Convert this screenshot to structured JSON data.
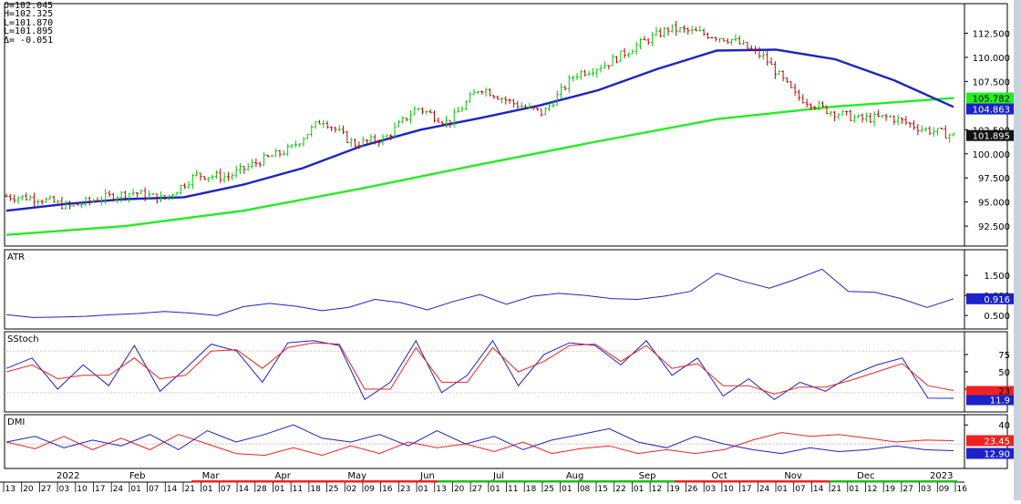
{
  "ohlc_readout": {
    "open": "O=102.045",
    "high": "H=102.325",
    "low_1": "L=101.870",
    "low_2": "L=101.895",
    "change": "Δ= -0.051"
  },
  "chart_data": [
    {
      "panel": "price",
      "type": "line",
      "subtype": "ohlc-bars",
      "x_range": [
        "2021-12-13",
        "2023-01-16"
      ],
      "ylim": [
        91.0,
        115.0
      ],
      "yticks": [
        "112.500",
        "110.000",
        "107.500",
        "102.500",
        "100.000",
        "97.500",
        "95.000",
        "92.500"
      ],
      "last_price": "101.895",
      "series": [
        {
          "kind": "ohlc",
          "color": "#00cc00",
          "down_color": "#cc0000",
          "x": [
            "2021-12-13",
            "2021-12-27",
            "2022-01-10",
            "2022-01-24",
            "2022-02-07",
            "2022-02-21",
            "2022-03-07",
            "2022-03-21",
            "2022-04-04",
            "2022-04-18",
            "2022-05-02",
            "2022-05-16",
            "2022-05-30",
            "2022-06-13",
            "2022-06-27",
            "2022-07-11",
            "2022-07-25",
            "2022-08-08",
            "2022-08-22",
            "2022-09-05",
            "2022-09-19",
            "2022-09-28",
            "2022-10-10",
            "2022-10-24",
            "2022-11-04",
            "2022-11-14",
            "2022-11-28",
            "2022-12-12",
            "2022-12-27",
            "2023-01-09",
            "2023-01-16"
          ],
          "values": [
            95.6,
            95.4,
            94.5,
            95.4,
            96.0,
            95.3,
            97.8,
            97.6,
            99.2,
            100.5,
            103.6,
            101.0,
            101.6,
            104.8,
            103.2,
            106.9,
            105.3,
            104.2,
            108.2,
            109.3,
            111.3,
            113.0,
            112.5,
            111.8,
            110.0,
            106.0,
            104.5,
            103.6,
            103.8,
            102.6,
            101.895
          ]
        },
        {
          "name": "",
          "kind": "moving-average",
          "color": "#1c22c8",
          "x": [
            "2021-12-13",
            "2022-01-17",
            "2022-02-14",
            "2022-03-07",
            "2022-04-04",
            "2022-05-02",
            "2022-05-30",
            "2022-06-27",
            "2022-07-25",
            "2022-08-22",
            "2022-09-19",
            "2022-10-10",
            "2022-10-31",
            "2022-11-14",
            "2022-12-05",
            "2022-12-27",
            "2023-01-16"
          ],
          "values": [
            94.1,
            94.8,
            95.3,
            95.5,
            96.8,
            98.5,
            100.8,
            102.5,
            103.7,
            105.0,
            106.6,
            108.8,
            110.7,
            110.8,
            109.8,
            107.6,
            104.863
          ]
        },
        {
          "name": "",
          "kind": "moving-average",
          "color": "#22ee22",
          "x": [
            "2021-12-13",
            "2022-02-14",
            "2022-04-18",
            "2022-06-13",
            "2022-08-08",
            "2022-09-26",
            "2022-11-07",
            "2022-12-12",
            "2023-01-16"
          ],
          "values": [
            91.6,
            92.5,
            94.1,
            96.4,
            98.9,
            101.3,
            103.6,
            104.9,
            105.782
          ]
        }
      ],
      "last_values": [
        "105.782",
        "104.863",
        "101.895"
      ]
    },
    {
      "panel": "ATR",
      "type": "line",
      "title": "ATR",
      "ylim": [
        0.3,
        2.0
      ],
      "yticks": [
        "1.500",
        "1.000",
        "0.500"
      ],
      "last_value": "0.916",
      "series": [
        {
          "name": "",
          "color": "#1c22c8",
          "values": [
            0.52,
            0.45,
            0.46,
            0.48,
            0.52,
            0.55,
            0.6,
            0.56,
            0.5,
            0.72,
            0.8,
            0.73,
            0.62,
            0.7,
            0.9,
            0.82,
            0.64,
            0.85,
            1.02,
            0.78,
            0.98,
            1.05,
            1.0,
            0.92,
            0.9,
            0.98,
            1.1,
            1.55,
            1.35,
            1.18,
            1.4,
            1.65,
            1.1,
            1.08,
            0.92,
            0.7,
            0.916
          ]
        }
      ]
    },
    {
      "panel": "SStoch",
      "type": "line",
      "title": "SStoch",
      "ylim": [
        0,
        100
      ],
      "yticks": [
        "75",
        "50",
        "25"
      ],
      "reference_lines": [
        80,
        20
      ],
      "last_values": [
        "23",
        "11.9"
      ],
      "series": [
        {
          "name": "",
          "color": "#1c22c8",
          "values": [
            55,
            70,
            25,
            60,
            30,
            88,
            22,
            55,
            90,
            80,
            35,
            92,
            95,
            88,
            10,
            35,
            95,
            20,
            45,
            95,
            30,
            75,
            92,
            88,
            60,
            95,
            45,
            70,
            15,
            40,
            10,
            35,
            22,
            45,
            60,
            70,
            12,
            11.9
          ]
        },
        {
          "name": "",
          "color": "#ee2222",
          "values": [
            50,
            60,
            40,
            45,
            45,
            70,
            40,
            45,
            80,
            82,
            55,
            85,
            92,
            90,
            25,
            25,
            85,
            35,
            35,
            85,
            50,
            65,
            88,
            90,
            65,
            88,
            55,
            62,
            30,
            30,
            18,
            28,
            28,
            38,
            50,
            62,
            30,
            23
          ]
        }
      ]
    },
    {
      "panel": "DMI",
      "type": "line",
      "title": "DMI",
      "ylim": [
        0,
        45
      ],
      "yticks": [
        "40"
      ],
      "reference_lines": [
        20
      ],
      "last_values": [
        "23.45",
        "12.90"
      ],
      "series": [
        {
          "name": "",
          "color": "#ee2222",
          "values": [
            22,
            15,
            28,
            14,
            26,
            14,
            30,
            20,
            10,
            8,
            16,
            8,
            18,
            10,
            22,
            16,
            20,
            12,
            22,
            10,
            15,
            18,
            10,
            14,
            10,
            14,
            24,
            32,
            28,
            30,
            26,
            22,
            24,
            23.45
          ]
        },
        {
          "name": "",
          "color": "#1c22c8",
          "values": [
            22,
            28,
            16,
            24,
            18,
            30,
            14,
            34,
            22,
            30,
            40,
            26,
            22,
            30,
            18,
            34,
            20,
            28,
            14,
            24,
            30,
            36,
            22,
            16,
            28,
            20,
            14,
            10,
            16,
            12,
            14,
            18,
            14,
            12.9
          ]
        }
      ]
    }
  ],
  "time_axis": {
    "month_labels": [
      "2022",
      "Feb",
      "Mar",
      "Apr",
      "May",
      "Jun",
      "Jul",
      "Aug",
      "Sep",
      "Oct",
      "Nov",
      "Dec",
      "2023"
    ],
    "day_labels": [
      "13",
      "20",
      "27",
      "03",
      "10",
      "17",
      "24",
      "01",
      "07",
      "14",
      "21",
      "01",
      "07",
      "14",
      "28",
      "01",
      "11",
      "18",
      "25",
      "02",
      "09",
      "16",
      "23",
      "01",
      "13",
      "20",
      "27",
      "01",
      "11",
      "18",
      "25",
      "01",
      "08",
      "15",
      "22",
      "01",
      "12",
      "19",
      "26",
      "03",
      "10",
      "17",
      "24",
      "01",
      "07",
      "14",
      "21",
      "01",
      "12",
      "19",
      "27",
      "03",
      "09",
      "16"
    ]
  }
}
